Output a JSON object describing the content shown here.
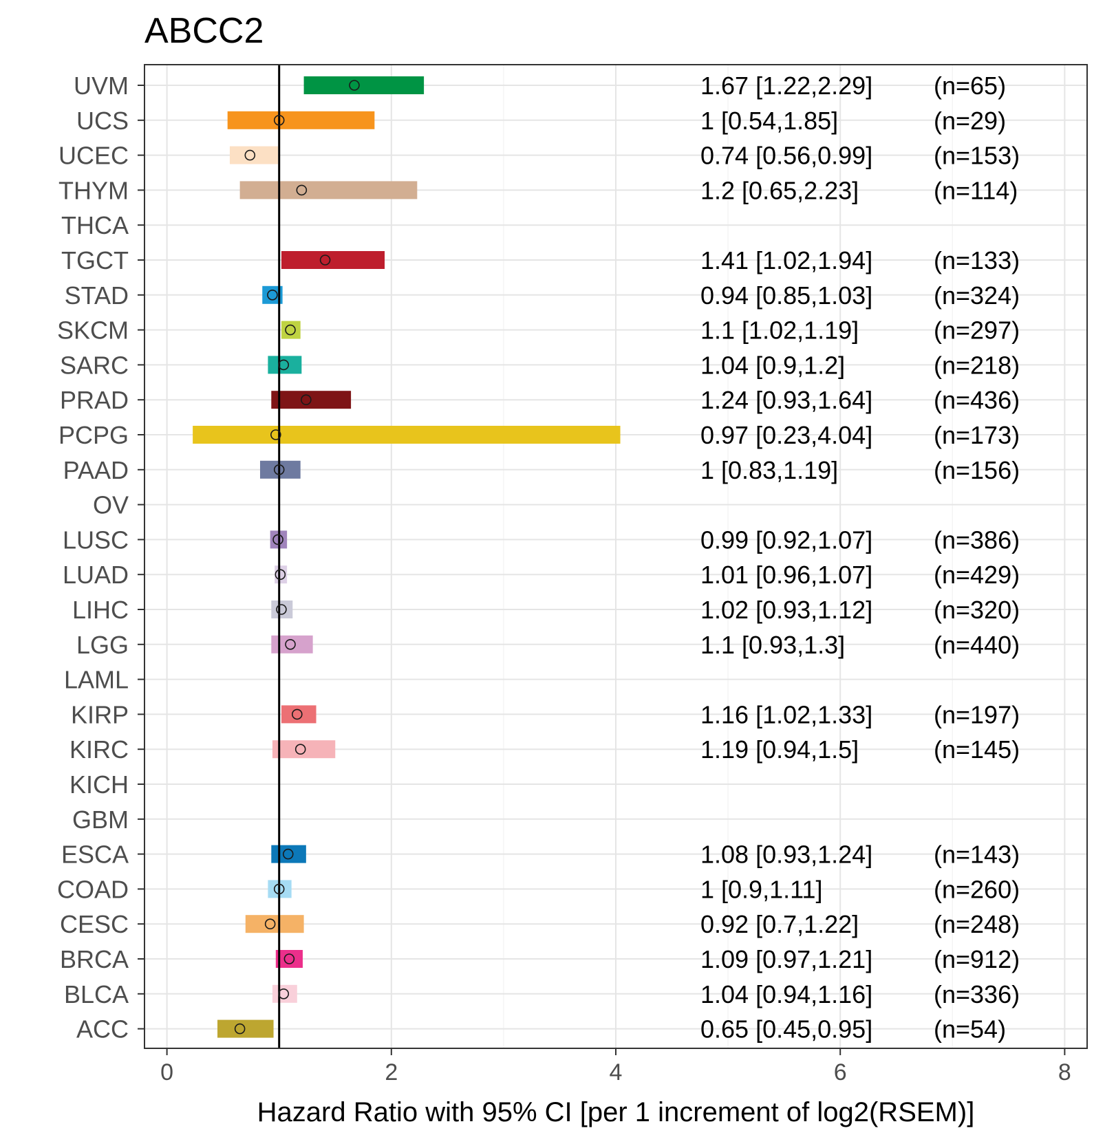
{
  "chart_data": {
    "type": "forest",
    "title": "ABCC2",
    "xlabel": "Hazard Ratio with 95% CI [per 1 increment of log2(RSEM)]",
    "xlim": [
      -0.2,
      8.2
    ],
    "xticks": [
      0,
      2,
      4,
      6,
      8
    ],
    "xtick_labels": [
      "0",
      "2",
      "4",
      "6",
      "8"
    ],
    "reference_line": 1,
    "grid": true,
    "rows": [
      {
        "label": "UVM",
        "hr": 1.67,
        "lo": 1.22,
        "hi": 2.29,
        "text": "1.67 [1.22,2.29]",
        "n": "(n=65)",
        "color": "#009444"
      },
      {
        "label": "UCS",
        "hr": 1.0,
        "lo": 0.54,
        "hi": 1.85,
        "text": "1 [0.54,1.85]",
        "n": "(n=29)",
        "color": "#F7941D"
      },
      {
        "label": "UCEC",
        "hr": 0.74,
        "lo": 0.56,
        "hi": 0.99,
        "text": "0.74 [0.56,0.99]",
        "n": "(n=153)",
        "color": "#FCE0C4"
      },
      {
        "label": "THYM",
        "hr": 1.2,
        "lo": 0.65,
        "hi": 2.23,
        "text": "1.2 [0.65,2.23]",
        "n": "(n=114)",
        "color": "#D2AE92"
      },
      {
        "label": "THCA",
        "hr": null,
        "lo": null,
        "hi": null,
        "text": "",
        "n": "",
        "color": "#bbbbbb"
      },
      {
        "label": "TGCT",
        "hr": 1.41,
        "lo": 1.02,
        "hi": 1.94,
        "text": "1.41 [1.02,1.94]",
        "n": "(n=133)",
        "color": "#BE1E2D"
      },
      {
        "label": "STAD",
        "hr": 0.94,
        "lo": 0.85,
        "hi": 1.03,
        "text": "0.94 [0.85,1.03]",
        "n": "(n=324)",
        "color": "#1C9AD6"
      },
      {
        "label": "SKCM",
        "hr": 1.1,
        "lo": 1.02,
        "hi": 1.19,
        "text": "1.1 [1.02,1.19]",
        "n": "(n=297)",
        "color": "#BFD342"
      },
      {
        "label": "SARC",
        "hr": 1.04,
        "lo": 0.9,
        "hi": 1.2,
        "text": "1.04 [0.9,1.2]",
        "n": "(n=218)",
        "color": "#1AB09E"
      },
      {
        "label": "PRAD",
        "hr": 1.24,
        "lo": 0.93,
        "hi": 1.64,
        "text": "1.24 [0.93,1.64]",
        "n": "(n=436)",
        "color": "#7E1416"
      },
      {
        "label": "PCPG",
        "hr": 0.97,
        "lo": 0.23,
        "hi": 4.04,
        "text": "0.97 [0.23,4.04]",
        "n": "(n=173)",
        "color": "#E8C41C"
      },
      {
        "label": "PAAD",
        "hr": 1.0,
        "lo": 0.83,
        "hi": 1.19,
        "text": "1 [0.83,1.19]",
        "n": "(n=156)",
        "color": "#6E7AA0"
      },
      {
        "label": "OV",
        "hr": null,
        "lo": null,
        "hi": null,
        "text": "",
        "n": "",
        "color": "#bbbbbb"
      },
      {
        "label": "LUSC",
        "hr": 0.99,
        "lo": 0.92,
        "hi": 1.07,
        "text": "0.99 [0.92,1.07]",
        "n": "(n=386)",
        "color": "#A084BC"
      },
      {
        "label": "LUAD",
        "hr": 1.01,
        "lo": 0.96,
        "hi": 1.07,
        "text": "1.01 [0.96,1.07]",
        "n": "(n=429)",
        "color": "#DDD0E6"
      },
      {
        "label": "LIHC",
        "hr": 1.02,
        "lo": 0.93,
        "hi": 1.12,
        "text": "1.02 [0.93,1.12]",
        "n": "(n=320)",
        "color": "#CACAD8"
      },
      {
        "label": "LGG",
        "hr": 1.1,
        "lo": 0.93,
        "hi": 1.3,
        "text": "1.1 [0.93,1.3]",
        "n": "(n=440)",
        "color": "#D6A2CC"
      },
      {
        "label": "LAML",
        "hr": null,
        "lo": null,
        "hi": null,
        "text": "",
        "n": "",
        "color": "#bbbbbb"
      },
      {
        "label": "KIRP",
        "hr": 1.16,
        "lo": 1.02,
        "hi": 1.33,
        "text": "1.16 [1.02,1.33]",
        "n": "(n=197)",
        "color": "#EC7074"
      },
      {
        "label": "KIRC",
        "hr": 1.19,
        "lo": 0.94,
        "hi": 1.5,
        "text": "1.19 [0.94,1.5]",
        "n": "(n=145)",
        "color": "#F6B3B8"
      },
      {
        "label": "KICH",
        "hr": null,
        "lo": null,
        "hi": null,
        "text": "",
        "n": "",
        "color": "#bbbbbb"
      },
      {
        "label": "GBM",
        "hr": null,
        "lo": null,
        "hi": null,
        "text": "",
        "n": "",
        "color": "#bbbbbb"
      },
      {
        "label": "ESCA",
        "hr": 1.08,
        "lo": 0.93,
        "hi": 1.24,
        "text": "1.08 [0.93,1.24]",
        "n": "(n=143)",
        "color": "#0C78B8"
      },
      {
        "label": "COAD",
        "hr": 1.0,
        "lo": 0.9,
        "hi": 1.11,
        "text": "1 [0.9,1.11]",
        "n": "(n=260)",
        "color": "#A6DCF4"
      },
      {
        "label": "CESC",
        "hr": 0.92,
        "lo": 0.7,
        "hi": 1.22,
        "text": "0.92 [0.7,1.22]",
        "n": "(n=248)",
        "color": "#F5B266"
      },
      {
        "label": "BRCA",
        "hr": 1.09,
        "lo": 0.97,
        "hi": 1.21,
        "text": "1.09 [0.97,1.21]",
        "n": "(n=912)",
        "color": "#EC2F8B"
      },
      {
        "label": "BLCA",
        "hr": 1.04,
        "lo": 0.94,
        "hi": 1.16,
        "text": "1.04 [0.94,1.16]",
        "n": "(n=336)",
        "color": "#F9D0DA"
      },
      {
        "label": "ACC",
        "hr": 0.65,
        "lo": 0.45,
        "hi": 0.95,
        "text": "0.65 [0.45,0.95]",
        "n": "(n=54)",
        "color": "#BDA630"
      }
    ]
  }
}
